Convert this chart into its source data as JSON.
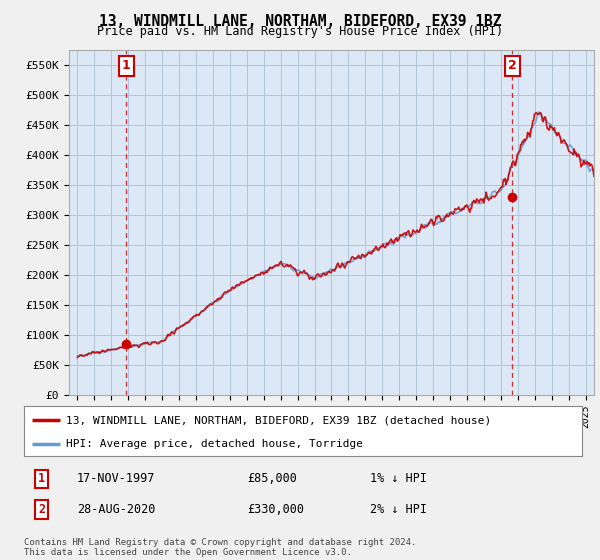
{
  "title": "13, WINDMILL LANE, NORTHAM, BIDEFORD, EX39 1BZ",
  "subtitle": "Price paid vs. HM Land Registry's House Price Index (HPI)",
  "ylim": [
    0,
    575000
  ],
  "yticks": [
    0,
    50000,
    100000,
    150000,
    200000,
    250000,
    300000,
    350000,
    400000,
    450000,
    500000,
    550000
  ],
  "ytick_labels": [
    "£0",
    "£50K",
    "£100K",
    "£150K",
    "£200K",
    "£250K",
    "£300K",
    "£350K",
    "£400K",
    "£450K",
    "£500K",
    "£550K"
  ],
  "bg_color": "#e8eef5",
  "plot_bg_color": "#dce8f5",
  "outer_bg_color": "#f0f0f0",
  "grid_color": "#b0c4d8",
  "hpi_line_color": "#6699cc",
  "price_line_color": "#cc0000",
  "sale1_x": 1997.88,
  "sale1_y": 85000,
  "sale1_label": "1",
  "sale1_date": "17-NOV-1997",
  "sale1_price": "£85,000",
  "sale1_hpi": "1% ↓ HPI",
  "sale2_x": 2020.66,
  "sale2_y": 330000,
  "sale2_label": "2",
  "sale2_date": "28-AUG-2020",
  "sale2_price": "£330,000",
  "sale2_hpi": "2% ↓ HPI",
  "legend_line1": "13, WINDMILL LANE, NORTHAM, BIDEFORD, EX39 1BZ (detached house)",
  "legend_line2": "HPI: Average price, detached house, Torridge",
  "footnote": "Contains HM Land Registry data © Crown copyright and database right 2024.\nThis data is licensed under the Open Government Licence v3.0.",
  "xmin": 1994.5,
  "xmax": 2025.5
}
